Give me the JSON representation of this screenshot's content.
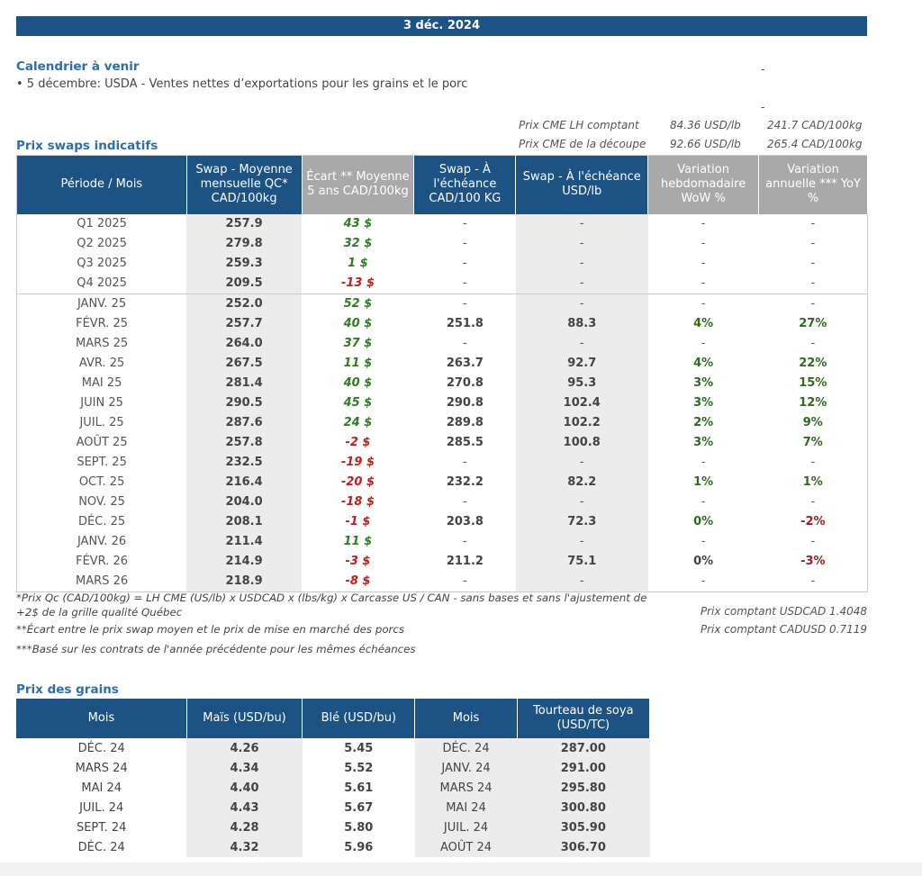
{
  "banner_date": "3 déc. 2024",
  "calendar": {
    "title": "Calendrier à venir",
    "item": "• 5 décembre: USDA - Ventes nettes d’exportations pour les grains et le porc",
    "dash1": "-",
    "dash2": "-"
  },
  "cme": {
    "row1_label": "Prix CME LH comptant",
    "row1_usd": "84.36 USD/lb",
    "row1_cad": "241.7 CAD/100kg",
    "row2_label": "Prix CME de la découpe",
    "row2_usd": "92.66 USD/lb",
    "row2_cad": "265.4 CAD/100kg"
  },
  "swaps": {
    "title": "Prix swaps indicatifs",
    "headers": [
      "Période / Mois",
      "Swap - Moyenne mensuelle QC* CAD/100kg",
      "Écart ** Moyenne 5 ans CAD/100kg",
      "Swap - À l'échéance CAD/100 KG",
      "Swap - À l'échéance USD/lb",
      "Variation hebdomadaire WoW %",
      "Variation annuelle *** YoY %"
    ],
    "rows": [
      {
        "period": "Q1 2025",
        "qc": "257.9",
        "spread": "43 $",
        "cad": "-",
        "usd": "-",
        "wow": "-",
        "yoy": "-"
      },
      {
        "period": "Q2 2025",
        "qc": "279.8",
        "spread": "32 $",
        "cad": "-",
        "usd": "-",
        "wow": "-",
        "yoy": "-"
      },
      {
        "period": "Q3 2025",
        "qc": "259.3",
        "spread": "1 $",
        "cad": "-",
        "usd": "-",
        "wow": "-",
        "yoy": "-"
      },
      {
        "period": "Q4 2025",
        "qc": "209.5",
        "spread": "-13 $",
        "cad": "-",
        "usd": "-",
        "wow": "-",
        "yoy": "-"
      },
      {
        "period": "JANV. 25",
        "qc": "252.0",
        "spread": "52 $",
        "cad": "-",
        "usd": "-",
        "wow": "-",
        "yoy": "-"
      },
      {
        "period": "FÉVR. 25",
        "qc": "257.7",
        "spread": "40 $",
        "cad": "251.8",
        "usd": "88.3",
        "wow": "4%",
        "yoy": "27%"
      },
      {
        "period": "MARS 25",
        "qc": "264.0",
        "spread": "37 $",
        "cad": "-",
        "usd": "-",
        "wow": "-",
        "yoy": "-"
      },
      {
        "period": "AVR. 25",
        "qc": "267.5",
        "spread": "11 $",
        "cad": "263.7",
        "usd": "92.7",
        "wow": "4%",
        "yoy": "22%"
      },
      {
        "period": "MAI 25",
        "qc": "281.4",
        "spread": "40 $",
        "cad": "270.8",
        "usd": "95.3",
        "wow": "3%",
        "yoy": "15%"
      },
      {
        "period": "JUIN 25",
        "qc": "290.5",
        "spread": "45 $",
        "cad": "290.8",
        "usd": "102.4",
        "wow": "3%",
        "yoy": "12%"
      },
      {
        "period": "JUIL. 25",
        "qc": "287.6",
        "spread": "24 $",
        "cad": "289.8",
        "usd": "102.2",
        "wow": "2%",
        "yoy": "9%"
      },
      {
        "period": "AOÛT 25",
        "qc": "257.8",
        "spread": "-2 $",
        "cad": "285.5",
        "usd": "100.8",
        "wow": "3%",
        "yoy": "7%"
      },
      {
        "period": "SEPT. 25",
        "qc": "232.5",
        "spread": "-19 $",
        "cad": "-",
        "usd": "-",
        "wow": "-",
        "yoy": "-"
      },
      {
        "period": "OCT. 25",
        "qc": "216.4",
        "spread": "-20 $",
        "cad": "232.2",
        "usd": "82.2",
        "wow": "1%",
        "yoy": "1%"
      },
      {
        "period": "NOV. 25",
        "qc": "204.0",
        "spread": "-18 $",
        "cad": "-",
        "usd": "-",
        "wow": "-",
        "yoy": "-"
      },
      {
        "period": "DÉC. 25",
        "qc": "208.1",
        "spread": "-1 $",
        "cad": "203.8",
        "usd": "72.3",
        "wow": "0%",
        "yoy": "-2%"
      },
      {
        "period": "JANV. 26",
        "qc": "211.4",
        "spread": "11 $",
        "cad": "-",
        "usd": "-",
        "wow": "-",
        "yoy": "-"
      },
      {
        "period": "FÉVR. 26",
        "qc": "214.9",
        "spread": "-3 $",
        "cad": "211.2",
        "usd": "75.1",
        "wow": "0%",
        "yoy": "-3%"
      },
      {
        "period": "MARS 26",
        "qc": "218.9",
        "spread": "-8 $",
        "cad": "-",
        "usd": "-",
        "wow": "-",
        "yoy": "-"
      }
    ]
  },
  "notes": {
    "n1": "*Prix Qc (CAD/100kg) = LH CME (US/lb) x USDCAD x (lbs/kg) x Carcasse US / CAN - sans bases et sans l'ajustement de +2$ de la grille qualité Québec",
    "n2": "**Écart entre le prix swap moyen et le prix de mise en marché des porcs",
    "n3": "***Basé sur les contrats de l'année précédente pour les mêmes échéances",
    "usdcad": "Prix comptant USDCAD 1.4048",
    "cadusd": "Prix comptant CADUSD 0.7119"
  },
  "grains": {
    "title": "Prix des grains",
    "headers": [
      "Mois",
      "Maïs (USD/bu)",
      "Blé (USD/bu)",
      "Mois",
      "Tourteau de soya (USD/TC)"
    ],
    "rows": [
      {
        "m1": "DÉC. 24",
        "corn": "4.26",
        "wheat": "5.45",
        "m2": "DÉC. 24",
        "soy": "287.00"
      },
      {
        "m1": "MARS 24",
        "corn": "4.34",
        "wheat": "5.52",
        "m2": "JANV. 24",
        "soy": "291.00"
      },
      {
        "m1": "MAI 24",
        "corn": "4.40",
        "wheat": "5.61",
        "m2": "MARS 24",
        "soy": "295.80"
      },
      {
        "m1": "JUIL. 24",
        "corn": "4.43",
        "wheat": "5.67",
        "m2": "MAI 24",
        "soy": "300.80"
      },
      {
        "m1": "SEPT. 24",
        "corn": "4.28",
        "wheat": "5.80",
        "m2": "JUIL. 24",
        "soy": "305.90"
      },
      {
        "m1": "DÉC. 24",
        "corn": "4.32",
        "wheat": "5.96",
        "m2": "AOÛT 24",
        "soy": "306.70"
      }
    ]
  }
}
